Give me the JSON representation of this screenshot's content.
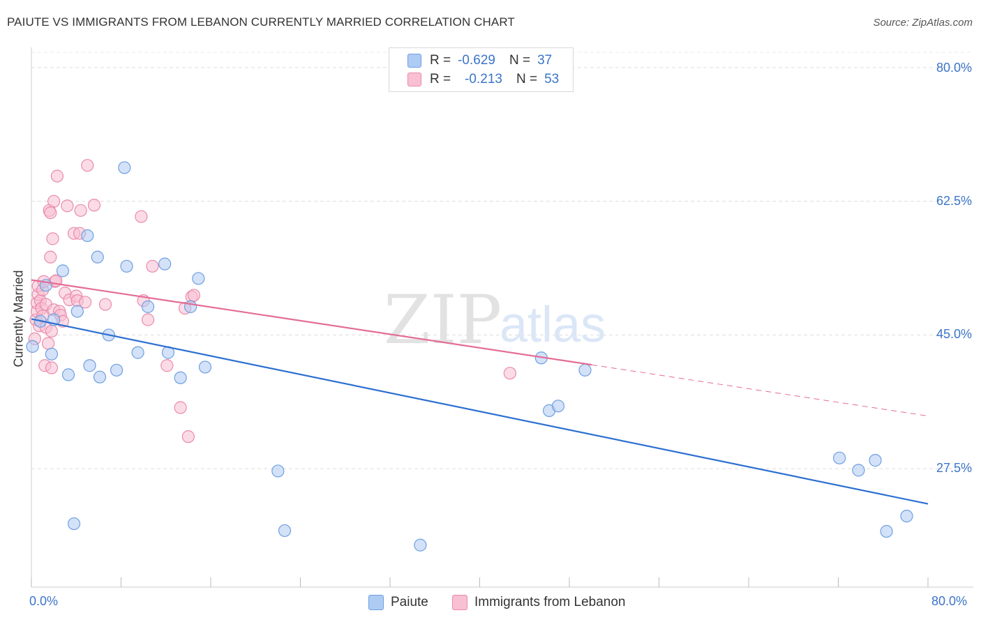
{
  "title": "PAIUTE VS IMMIGRANTS FROM LEBANON CURRENTLY MARRIED CORRELATION CHART",
  "source": "Source: ZipAtlas.com",
  "watermark": {
    "zip": "ZIP",
    "atlas": "atlas"
  },
  "legend_box": {
    "rows": [
      {
        "r_label": "R =",
        "r_value": "-0.629",
        "n_label": "N =",
        "n_value": "37",
        "color": "#aecbf3",
        "border": "#6f9fe0"
      },
      {
        "r_label": "R =",
        "r_value": "-0.213",
        "n_label": "N =",
        "n_value": "53",
        "color": "#f8c0d2",
        "border": "#ea8aaa"
      }
    ]
  },
  "colors": {
    "paiute_fill": "#aecbf3",
    "paiute_stroke": "#6f9fe0",
    "paiute_line": "#2c6fd1",
    "lebanon_fill": "#f8c0d2",
    "lebanon_stroke": "#ea8aaa",
    "lebanon_line": "#e36d95",
    "axis_text": "#3b74c9",
    "grid": "#dddddd"
  },
  "chart_data": {
    "type": "scatter",
    "title": "PAIUTE VS IMMIGRANTS FROM LEBANON CURRENTLY MARRIED CORRELATION CHART",
    "xlabel": "",
    "ylabel": "Currently Married",
    "xlim": [
      0,
      80
    ],
    "ylim": [
      12,
      82
    ],
    "x_tick_labels": [
      "0.0%",
      "80.0%"
    ],
    "y_ticks": [
      27.5,
      45.0,
      62.5,
      80.0
    ],
    "y_tick_labels": [
      "27.5%",
      "45.0%",
      "62.5%",
      "80.0%"
    ],
    "grid": true,
    "legend": "bottom-center",
    "series": [
      {
        "name": "Paiute",
        "points": [
          [
            0.1,
            43.5
          ],
          [
            0.8,
            46.8
          ],
          [
            1.3,
            51.5
          ],
          [
            1.8,
            42.5
          ],
          [
            2.0,
            47.0
          ],
          [
            2.8,
            53.4
          ],
          [
            3.3,
            39.8
          ],
          [
            4.1,
            48.1
          ],
          [
            5.0,
            58.0
          ],
          [
            5.2,
            41.0
          ],
          [
            5.9,
            55.2
          ],
          [
            6.1,
            39.5
          ],
          [
            6.9,
            45.0
          ],
          [
            7.6,
            40.4
          ],
          [
            8.3,
            66.9
          ],
          [
            8.5,
            54.0
          ],
          [
            9.5,
            42.7
          ],
          [
            10.4,
            48.7
          ],
          [
            12.2,
            42.7
          ],
          [
            11.9,
            54.3
          ],
          [
            13.3,
            39.4
          ],
          [
            14.2,
            48.7
          ],
          [
            14.9,
            52.4
          ],
          [
            15.5,
            40.8
          ],
          [
            3.8,
            20.3
          ],
          [
            22.0,
            27.2
          ],
          [
            22.6,
            19.4
          ],
          [
            34.7,
            17.5
          ],
          [
            45.5,
            42.0
          ],
          [
            46.2,
            35.1
          ],
          [
            47.0,
            35.7
          ],
          [
            49.4,
            40.4
          ],
          [
            72.1,
            28.9
          ],
          [
            73.8,
            27.3
          ],
          [
            75.3,
            28.6
          ],
          [
            76.3,
            19.3
          ],
          [
            78.1,
            21.3
          ]
        ]
      },
      {
        "name": "Immigrants from Lebanon",
        "points": [
          [
            0.3,
            44.5
          ],
          [
            0.4,
            47.0
          ],
          [
            0.5,
            48.1
          ],
          [
            0.5,
            49.2
          ],
          [
            0.6,
            50.3
          ],
          [
            0.6,
            51.4
          ],
          [
            0.7,
            46.2
          ],
          [
            0.8,
            49.5
          ],
          [
            0.9,
            48.5
          ],
          [
            1.0,
            50.9
          ],
          [
            1.0,
            47.5
          ],
          [
            1.1,
            52.0
          ],
          [
            1.2,
            41.0
          ],
          [
            1.3,
            49.0
          ],
          [
            1.3,
            46.0
          ],
          [
            1.5,
            43.9
          ],
          [
            1.6,
            61.3
          ],
          [
            1.7,
            61.0
          ],
          [
            1.7,
            55.2
          ],
          [
            1.8,
            45.5
          ],
          [
            1.8,
            40.7
          ],
          [
            1.9,
            57.6
          ],
          [
            2.0,
            62.5
          ],
          [
            2.0,
            48.3
          ],
          [
            2.1,
            52.0
          ],
          [
            2.2,
            52.1
          ],
          [
            2.3,
            65.8
          ],
          [
            2.5,
            48.1
          ],
          [
            2.6,
            47.6
          ],
          [
            2.8,
            46.8
          ],
          [
            3.0,
            50.5
          ],
          [
            3.2,
            61.9
          ],
          [
            3.4,
            49.6
          ],
          [
            3.8,
            58.3
          ],
          [
            4.0,
            50.1
          ],
          [
            4.1,
            49.5
          ],
          [
            4.3,
            58.3
          ],
          [
            4.4,
            61.3
          ],
          [
            4.8,
            49.3
          ],
          [
            5.0,
            67.2
          ],
          [
            5.6,
            62.0
          ],
          [
            6.6,
            49.0
          ],
          [
            9.8,
            60.5
          ],
          [
            10.0,
            49.5
          ],
          [
            10.4,
            47.0
          ],
          [
            10.8,
            54.0
          ],
          [
            12.1,
            41.0
          ],
          [
            13.3,
            35.5
          ],
          [
            13.7,
            48.5
          ],
          [
            14.3,
            50.0
          ],
          [
            14.5,
            50.2
          ],
          [
            42.7,
            40.0
          ],
          [
            14.0,
            31.7
          ]
        ]
      }
    ],
    "trendlines": [
      {
        "series": "Paiute",
        "x": [
          0,
          80
        ],
        "y": [
          47.1,
          22.9
        ],
        "style": "solid"
      },
      {
        "series": "Immigrants from Lebanon",
        "x": [
          0,
          50
        ],
        "y": [
          52.2,
          41.1
        ],
        "style": "solid"
      },
      {
        "series": "Immigrants from Lebanon",
        "x": [
          50,
          80
        ],
        "y": [
          41.1,
          34.4
        ],
        "style": "dashed"
      }
    ]
  },
  "bottom_legend": {
    "items": [
      {
        "label": "Paiute"
      },
      {
        "label": "Immigrants from Lebanon"
      }
    ]
  }
}
